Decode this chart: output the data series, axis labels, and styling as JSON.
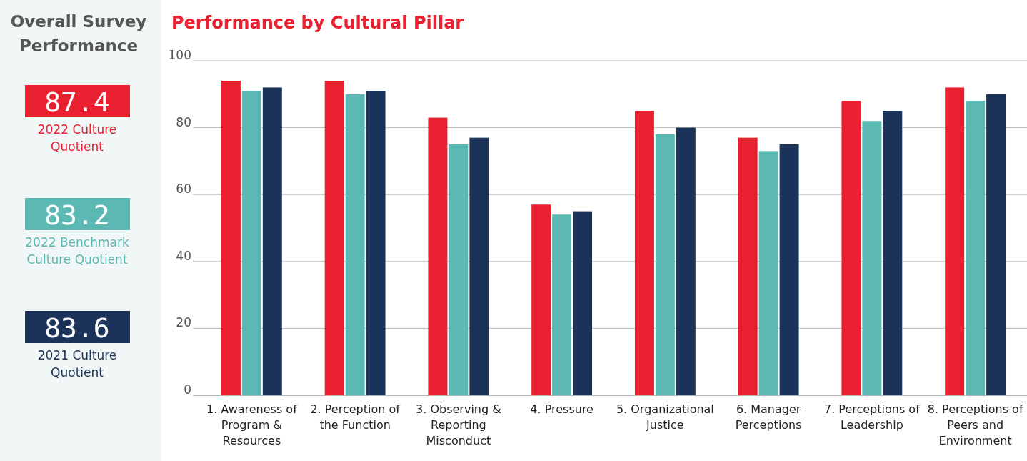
{
  "chart_data": [
    {
      "type": "other",
      "title": "Overall Survey Performance",
      "annotations": [
        "87.4",
        "2022 Culture Quotient",
        "83.2",
        "2022 Benchmark Culture Quotient",
        "83.6",
        "2021 Culture Quotient"
      ]
    },
    {
      "type": "bar",
      "title": "Performance by Cultural Pillar",
      "categories": [
        "1. Awareness of Program & Resources",
        "2. Perception of the Function",
        "3. Observing & Reporting Misconduct",
        "4. Pressure",
        "5. Organizational Justice",
        "6. Manager Perceptions",
        "7. Perceptions of Leadership",
        "8. Perceptions of Peers and Environment"
      ],
      "series": [
        {
          "color": "#e8202f",
          "values": [
            94,
            94,
            83,
            57,
            85,
            77,
            88,
            92
          ]
        },
        {
          "color": "#5bb8b2",
          "values": [
            91,
            90,
            75,
            54,
            78,
            73,
            82,
            88
          ]
        },
        {
          "color": "#1b3358",
          "values": [
            92,
            91,
            77,
            55,
            80,
            75,
            85,
            90
          ]
        }
      ],
      "ylim": [
        0,
        100
      ],
      "yticks": [
        0,
        20,
        40,
        60,
        80,
        100
      ],
      "grid": "y"
    }
  ]
}
